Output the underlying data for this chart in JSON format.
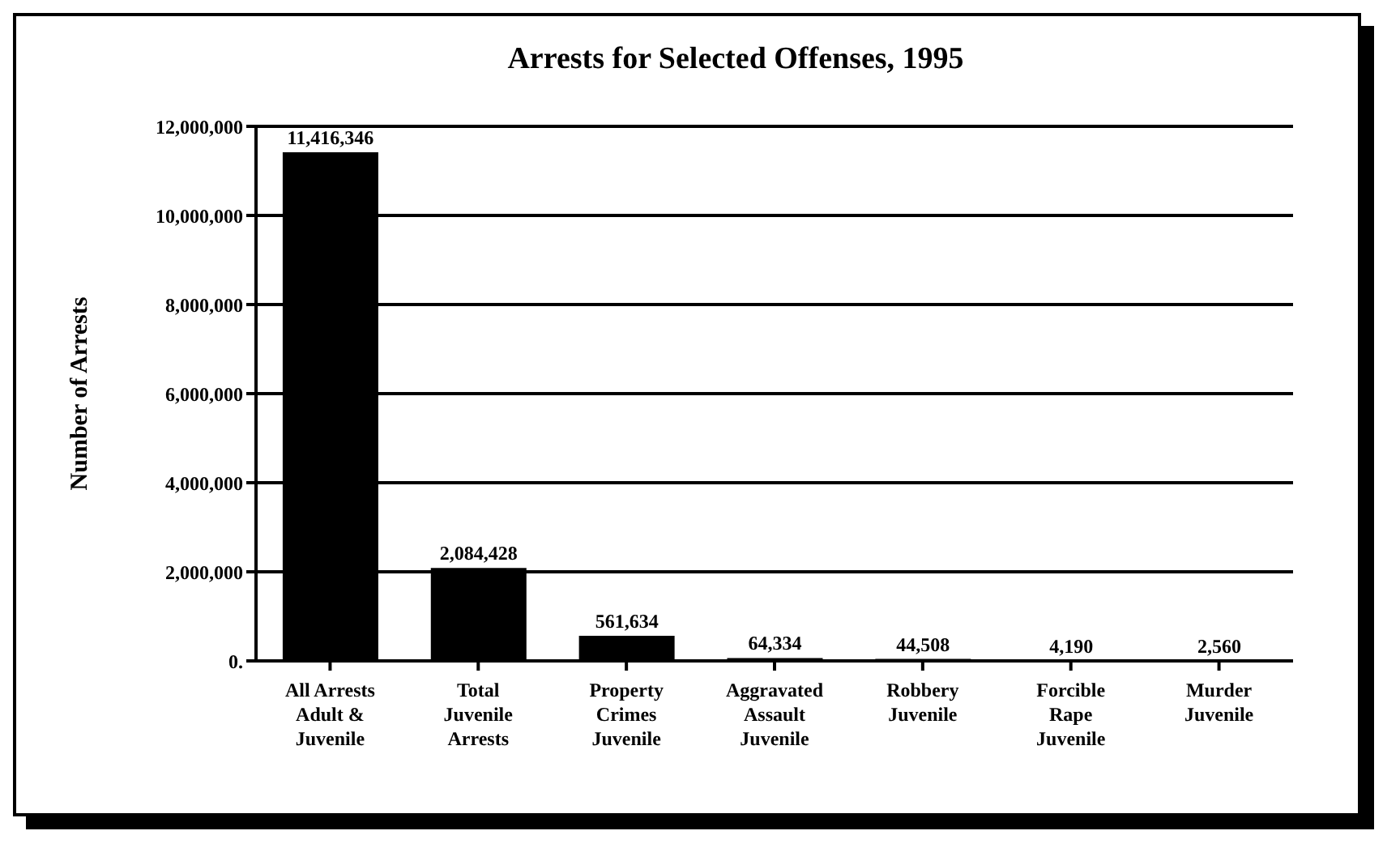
{
  "chart_data": {
    "type": "bar",
    "title": "Arrests for Selected Offenses, 1995",
    "ylabel": "Number of Arrests",
    "categories": [
      "All Arrests Adult & Juvenile",
      "Total Juvenile Arrests",
      "Property Crimes Juvenile",
      "Aggravated Assault Juvenile",
      "Robbery Juvenile",
      "Forcible Rape Juvenile",
      "Murder Juvenile"
    ],
    "values": [
      11416346,
      2084428,
      561634,
      64334,
      44508,
      4190,
      2560
    ],
    "color": "#000000",
    "ylim": [
      0,
      12000000
    ],
    "yticks": [
      {
        "value": 0,
        "label": "0."
      },
      {
        "value": 2000000,
        "label": "2,000,000"
      },
      {
        "value": 4000000,
        "label": "4,000,000"
      },
      {
        "value": 6000000,
        "label": "6,000,000"
      },
      {
        "value": 8000000,
        "label": "8,000,000"
      },
      {
        "value": 10000000,
        "label": "10,000,000"
      },
      {
        "value": 12000000,
        "label": "12,000,000"
      }
    ],
    "value_labels": [
      "11,416,346",
      "2,084,428",
      "561,634",
      "64,334",
      "44,508",
      "4,190",
      "2,560"
    ],
    "grid": "y"
  }
}
